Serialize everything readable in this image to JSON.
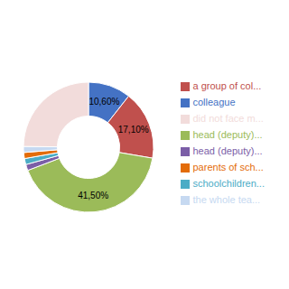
{
  "chart_data": {
    "type": "pie",
    "categories": [
      "colleague",
      "a group of col...",
      "head (deputy)...",
      "head (deputy)...",
      "schoolchildren...",
      "parents of sch...",
      "the whole tea...",
      "did not face m..."
    ],
    "values": [
      10.6,
      17.1,
      41.5,
      1.5,
      1.5,
      1.5,
      1.5,
      24.8
    ],
    "value_labels": [
      "10,60%",
      "17,10%",
      "41,50%",
      null,
      null,
      null,
      null,
      null
    ],
    "colors": [
      "#4472C4",
      "#C0504D",
      "#9BBB59",
      "#7B5EA7",
      "#4BACC6",
      "#E36C09",
      "#C6D9F1",
      "#F2DCDB"
    ],
    "data_labels": true,
    "legend": "right"
  }
}
